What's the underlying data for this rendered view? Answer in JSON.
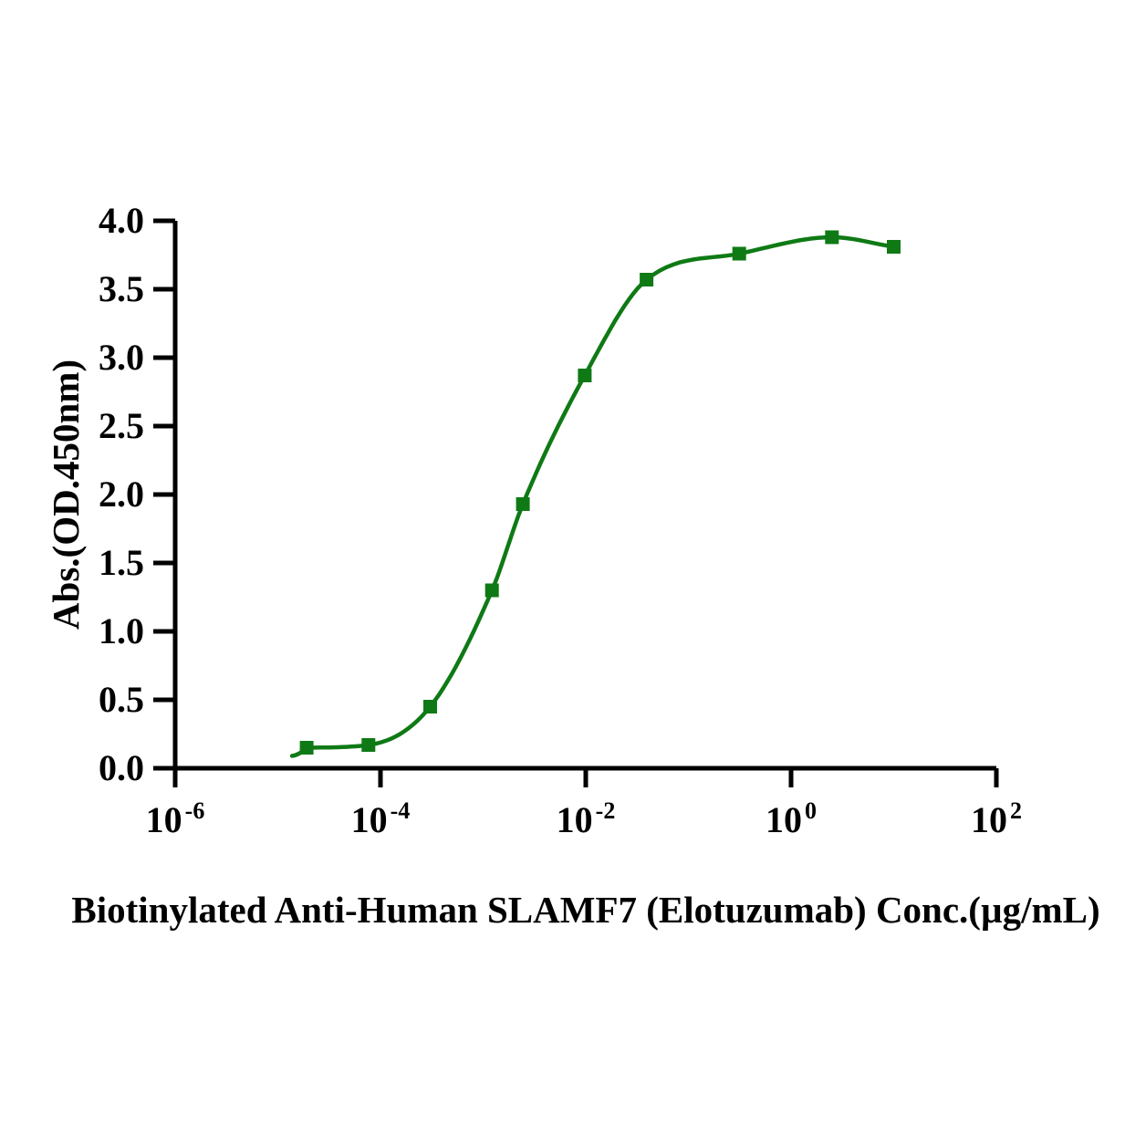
{
  "figure": {
    "background_color": "#ffffff"
  },
  "chart_data": {
    "type": "scatter",
    "title": "",
    "xlabel": "Biotinylated Anti-Human SLAMF7 (Elotuzumab) Conc.(µg/mL)",
    "ylabel": "Abs.(OD.450nm)",
    "x_scale": "log10",
    "x_range_log10": [
      -6,
      2
    ],
    "ylim": [
      0.0,
      4.0
    ],
    "grid": false,
    "legend_position": "none",
    "axis_color": "#000000",
    "line_color": "#0f7a15",
    "marker_color": "#0f7a15",
    "marker_shape": "square",
    "x_ticks": [
      {
        "base": "10",
        "exponent": "-6"
      },
      {
        "base": "10",
        "exponent": "-4"
      },
      {
        "base": "10",
        "exponent": "-2"
      },
      {
        "base": "10",
        "exponent": "0"
      },
      {
        "base": "10",
        "exponent": "2"
      }
    ],
    "y_ticks": [
      "0.0",
      "0.5",
      "1.0",
      "1.5",
      "2.0",
      "2.5",
      "3.0",
      "3.5",
      "4.0"
    ],
    "series": [
      {
        "name": "Biotinylated Anti-Human SLAMF7 (Elotuzumab)",
        "points": [
          {
            "conc_ug_ml": 1.91e-05,
            "abs_od450": 0.15
          },
          {
            "conc_ug_ml": 7.63e-05,
            "abs_od450": 0.17
          },
          {
            "conc_ug_ml": 0.000305,
            "abs_od450": 0.45
          },
          {
            "conc_ug_ml": 0.00122,
            "abs_od450": 1.3
          },
          {
            "conc_ug_ml": 0.00244,
            "abs_od450": 1.93
          },
          {
            "conc_ug_ml": 0.00977,
            "abs_od450": 2.87
          },
          {
            "conc_ug_ml": 0.0391,
            "abs_od450": 3.57
          },
          {
            "conc_ug_ml": 0.313,
            "abs_od450": 3.76
          },
          {
            "conc_ug_ml": 2.5,
            "abs_od450": 3.88
          },
          {
            "conc_ug_ml": 10,
            "abs_od450": 3.81
          }
        ]
      }
    ]
  }
}
